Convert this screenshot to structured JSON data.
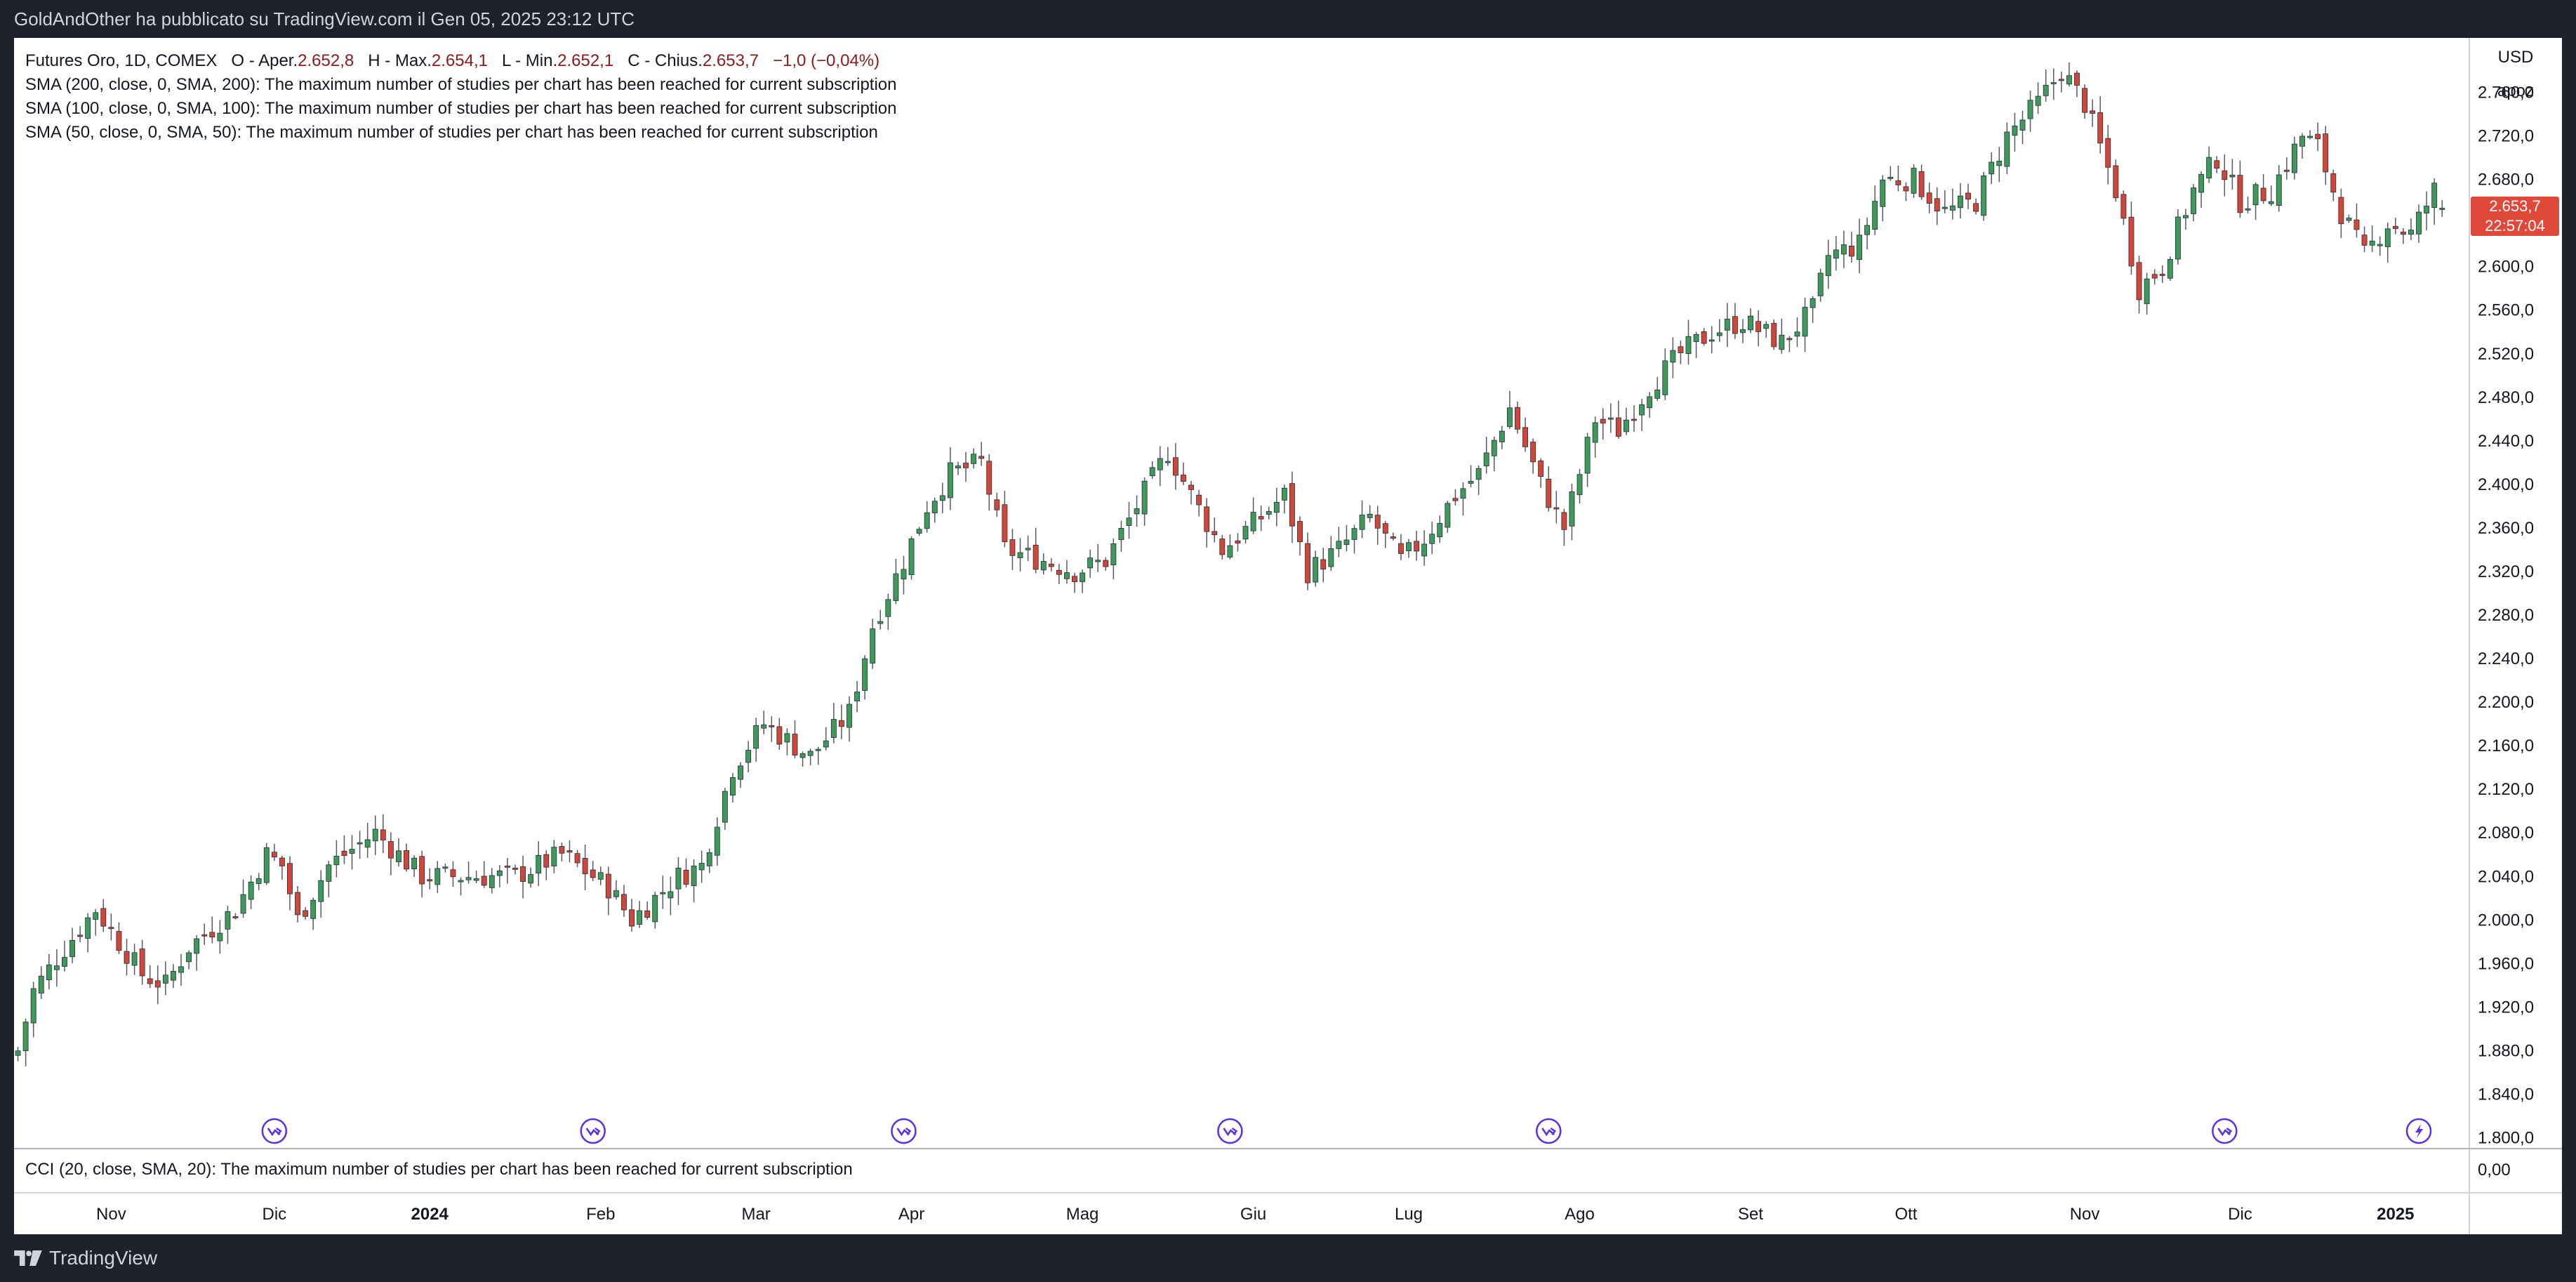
{
  "header": {
    "publisher_text": "GoldAndOther ha pubblicato su TradingView.com il Gen 05, 2025 23:12 UTC"
  },
  "footer": {
    "brand": "TradingView"
  },
  "legend": {
    "symbol": "Futures Oro, 1D, COMEX",
    "open_label": "O - Aper.",
    "open_value": "2.652,8",
    "high_label": "H - Max.",
    "high_value": "2.654,1",
    "low_label": "L - Min.",
    "low_value": "2.652,1",
    "close_label": "C - Chius.",
    "close_value": "2.653,7",
    "change": "−1,0 (−0,04%)",
    "studies": [
      "SMA (200, close, 0, SMA, 200): The maximum number of studies per chart has been reached for current subscription",
      "SMA (100, close, 0, SMA, 100): The maximum number of studies per chart has been reached for current subscription",
      "SMA (50, close, 0, SMA, 50): The maximum number of studies per chart has been reached for current subscription"
    ],
    "cci": "CCI (20, close, SMA, 20): The maximum number of studies per chart has been reached for current subscription"
  },
  "price_axis": {
    "currency": "USD",
    "label2": "apoz",
    "cci_zero": "0,00"
  },
  "last_price": {
    "price": "2.653,7",
    "countdown": "22:57:04"
  },
  "colors": {
    "up": "#26a65b",
    "down": "#e0483a",
    "up_fill": "#3d9a5a",
    "down_fill": "#d0473a",
    "event": "#5b2fe8",
    "last_price_bg": "#e0483a"
  },
  "events": {
    "icons": [
      "dividend-arrow-icon",
      "dividend-arrow-icon",
      "dividend-arrow-icon",
      "dividend-arrow-icon",
      "dividend-arrow-icon",
      "dividend-arrow-icon",
      "lightning-icon"
    ]
  },
  "chart_data": {
    "type": "candlestick",
    "title": "Futures Oro, 1D, COMEX",
    "ylim": [
      1790,
      2810
    ],
    "y_ticks": [
      {
        "v": 1800,
        "t": "1.800,0"
      },
      {
        "v": 1840,
        "t": "1.840,0"
      },
      {
        "v": 1880,
        "t": "1.880,0"
      },
      {
        "v": 1920,
        "t": "1.920,0"
      },
      {
        "v": 1960,
        "t": "1.960,0"
      },
      {
        "v": 2000,
        "t": "2.000,0"
      },
      {
        "v": 2040,
        "t": "2.040,0"
      },
      {
        "v": 2080,
        "t": "2.080,0"
      },
      {
        "v": 2120,
        "t": "2.120,0"
      },
      {
        "v": 2160,
        "t": "2.160,0"
      },
      {
        "v": 2200,
        "t": "2.200,0"
      },
      {
        "v": 2240,
        "t": "2.240,0"
      },
      {
        "v": 2280,
        "t": "2.280,0"
      },
      {
        "v": 2320,
        "t": "2.320,0"
      },
      {
        "v": 2360,
        "t": "2.360,0"
      },
      {
        "v": 2400,
        "t": "2.400,0"
      },
      {
        "v": 2440,
        "t": "2.440,0"
      },
      {
        "v": 2480,
        "t": "2.480,0"
      },
      {
        "v": 2520,
        "t": "2.520,0"
      },
      {
        "v": 2560,
        "t": "2.560,0"
      },
      {
        "v": 2600,
        "t": "2.600,0"
      },
      {
        "v": 2640,
        "t": "2.640,0"
      },
      {
        "v": 2680,
        "t": "2.680,0"
      },
      {
        "v": 2720,
        "t": "2.720,0"
      },
      {
        "v": 2760,
        "t": "2.760,0"
      }
    ],
    "x_labels": [
      {
        "i": 12,
        "t": "Nov",
        "bold": false
      },
      {
        "i": 33,
        "t": "Dic",
        "bold": false
      },
      {
        "i": 53,
        "t": "2024",
        "bold": true
      },
      {
        "i": 75,
        "t": "Feb",
        "bold": false
      },
      {
        "i": 95,
        "t": "Mar",
        "bold": false
      },
      {
        "i": 115,
        "t": "Apr",
        "bold": false
      },
      {
        "i": 137,
        "t": "Mag",
        "bold": false
      },
      {
        "i": 159,
        "t": "Giu",
        "bold": false
      },
      {
        "i": 179,
        "t": "Lug",
        "bold": false
      },
      {
        "i": 201,
        "t": "Ago",
        "bold": false
      },
      {
        "i": 223,
        "t": "Set",
        "bold": false
      },
      {
        "i": 243,
        "t": "Ott",
        "bold": false
      },
      {
        "i": 266,
        "t": "Nov",
        "bold": false
      },
      {
        "i": 286,
        "t": "Dic",
        "bold": false
      },
      {
        "i": 306,
        "t": "2025",
        "bold": true
      }
    ],
    "event_positions": [
      33,
      74,
      114,
      156,
      197,
      284,
      309
    ],
    "total_slots": 316,
    "anchors": [
      [
        0,
        1880
      ],
      [
        2,
        1935
      ],
      [
        5,
        1965
      ],
      [
        10,
        2010
      ],
      [
        16,
        1950
      ],
      [
        19,
        1940
      ],
      [
        22,
        1975
      ],
      [
        28,
        2010
      ],
      [
        32,
        2060
      ],
      [
        34,
        2050
      ],
      [
        36,
        2000
      ],
      [
        40,
        2050
      ],
      [
        46,
        2080
      ],
      [
        52,
        2040
      ],
      [
        58,
        2040
      ],
      [
        64,
        2040
      ],
      [
        70,
        2060
      ],
      [
        76,
        2030
      ],
      [
        79,
        2000
      ],
      [
        85,
        2040
      ],
      [
        88,
        2050
      ],
      [
        92,
        2140
      ],
      [
        96,
        2180
      ],
      [
        102,
        2150
      ],
      [
        107,
        2190
      ],
      [
        110,
        2270
      ],
      [
        114,
        2330
      ],
      [
        117,
        2380
      ],
      [
        120,
        2410
      ],
      [
        124,
        2420
      ],
      [
        127,
        2340
      ],
      [
        132,
        2330
      ],
      [
        136,
        2320
      ],
      [
        140,
        2330
      ],
      [
        144,
        2380
      ],
      [
        148,
        2430
      ],
      [
        151,
        2390
      ],
      [
        155,
        2340
      ],
      [
        160,
        2370
      ],
      [
        163,
        2390
      ],
      [
        166,
        2320
      ],
      [
        170,
        2340
      ],
      [
        174,
        2370
      ],
      [
        178,
        2330
      ],
      [
        181,
        2350
      ],
      [
        185,
        2390
      ],
      [
        188,
        2410
      ],
      [
        192,
        2470
      ],
      [
        196,
        2400
      ],
      [
        199,
        2360
      ],
      [
        203,
        2460
      ],
      [
        206,
        2450
      ],
      [
        210,
        2490
      ],
      [
        214,
        2520
      ],
      [
        218,
        2540
      ],
      [
        222,
        2550
      ],
      [
        227,
        2530
      ],
      [
        231,
        2560
      ],
      [
        233,
        2610
      ],
      [
        237,
        2620
      ],
      [
        240,
        2680
      ],
      [
        244,
        2680
      ],
      [
        248,
        2650
      ],
      [
        252,
        2660
      ],
      [
        256,
        2720
      ],
      [
        260,
        2750
      ],
      [
        263,
        2780
      ],
      [
        266,
        2750
      ],
      [
        270,
        2670
      ],
      [
        273,
        2580
      ],
      [
        276,
        2600
      ],
      [
        280,
        2670
      ],
      [
        283,
        2700
      ],
      [
        286,
        2660
      ],
      [
        290,
        2670
      ],
      [
        294,
        2720
      ],
      [
        296,
        2710
      ],
      [
        299,
        2650
      ],
      [
        302,
        2610
      ],
      [
        305,
        2640
      ],
      [
        308,
        2630
      ],
      [
        311,
        2670
      ],
      [
        312,
        2654
      ]
    ]
  }
}
